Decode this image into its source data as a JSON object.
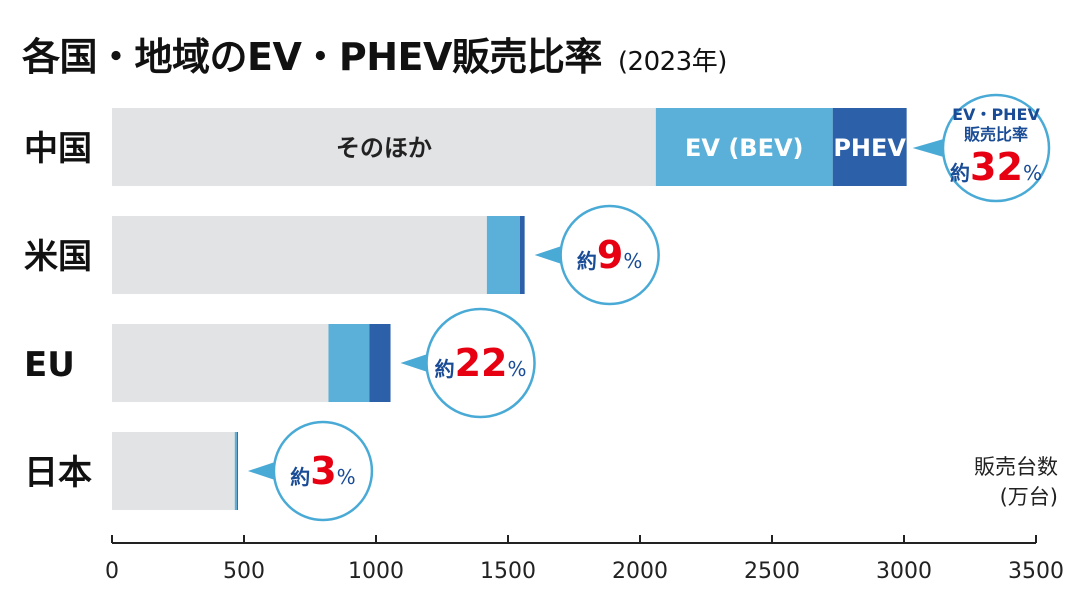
{
  "title": "各国・地域のEV・PHEV販売比率",
  "title_year": "(2023年)",
  "unit_line1": "販売台数",
  "unit_line2": "(万台)",
  "colors": {
    "other": "#e2e3e5",
    "bev": "#5ab0d8",
    "phev": "#2c60a8",
    "pct": "#e60012",
    "approx": "#1a4c96",
    "bubble_border": "#4aaad6"
  },
  "segment_labels": {
    "other": "そのほか",
    "bev": "EV (BEV)",
    "phev": "PHEV"
  },
  "bubble_header": [
    "EV・PHEV",
    "販売比率"
  ],
  "approx_label": "約",
  "percent_sign": "%",
  "chart_data": {
    "type": "bar",
    "orientation": "horizontal",
    "stacked": true,
    "categories": [
      "中国",
      "米国",
      "EU",
      "日本"
    ],
    "series": [
      {
        "name": "そのほか",
        "values": [
          2060,
          1420,
          820,
          465
        ]
      },
      {
        "name": "EV (BEV)",
        "values": [
          670,
          125,
          155,
          8
        ]
      },
      {
        "name": "PHEV",
        "values": [
          280,
          18,
          80,
          4
        ]
      }
    ],
    "share_percent": [
      32,
      9,
      22,
      3
    ],
    "xlim": [
      0,
      3500
    ],
    "xticks": [
      0,
      500,
      1000,
      1500,
      2000,
      2500,
      3000,
      3500
    ],
    "xlabel": "販売台数 (万台)"
  }
}
